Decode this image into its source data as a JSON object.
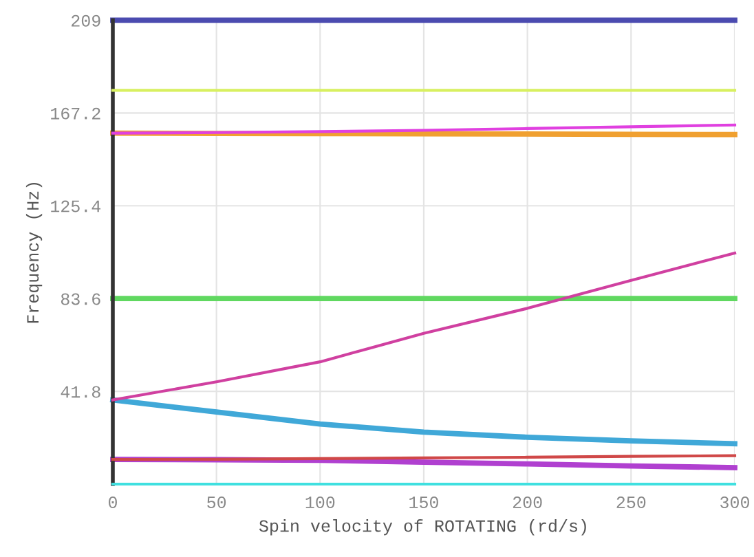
{
  "chart_data": {
    "type": "line",
    "xlabel": "Spin velocity of ROTATING (rd/s)",
    "ylabel": "Frequency (Hz)",
    "x": [
      0,
      50,
      100,
      150,
      200,
      250,
      300
    ],
    "series": [
      {
        "color": "#4b4bb0",
        "values": [
          209,
          209,
          209,
          209,
          209,
          209,
          209
        ]
      },
      {
        "color": "#d8f060",
        "values": [
          177.4,
          177.4,
          177.4,
          177.4,
          177.4,
          177.4,
          177.4
        ]
      },
      {
        "color": "#f0a030",
        "values": [
          158.1,
          158,
          157.9,
          157.8,
          157.7,
          157.6,
          157.5
        ]
      },
      {
        "color": "#e040e0",
        "values": [
          158.1,
          158.4,
          158.8,
          159.4,
          160.2,
          161,
          161.8
        ]
      },
      {
        "color": "#60d860",
        "values": [
          83.6,
          83.6,
          83.6,
          83.6,
          83.6,
          83.6,
          83.6
        ]
      },
      {
        "color": "#d040a0",
        "values": [
          37.9,
          46.1,
          55.1,
          67.9,
          79.2,
          91.8,
          104.1
        ]
      },
      {
        "color": "#40a8d8",
        "values": [
          37.9,
          32.5,
          27.1,
          23.4,
          21.1,
          19.5,
          18.2
        ]
      },
      {
        "color": "#d04848",
        "values": [
          11.1,
          11.2,
          11.5,
          11.8,
          12.1,
          12.5,
          12.8
        ]
      },
      {
        "color": "#b040d0",
        "values": [
          11.1,
          11,
          10.7,
          9.9,
          9.1,
          8.2,
          7.4
        ]
      },
      {
        "color": "#40e0e0",
        "values": [
          0,
          0,
          0,
          0,
          0,
          0,
          0
        ]
      }
    ],
    "xlim": [
      0,
      300
    ],
    "xticks": [
      0,
      50,
      100,
      150,
      200,
      250,
      300
    ],
    "ylim": [
      0,
      209
    ],
    "yticks": [
      41.8,
      83.6,
      125.4,
      167.2,
      209
    ],
    "grid": true
  }
}
